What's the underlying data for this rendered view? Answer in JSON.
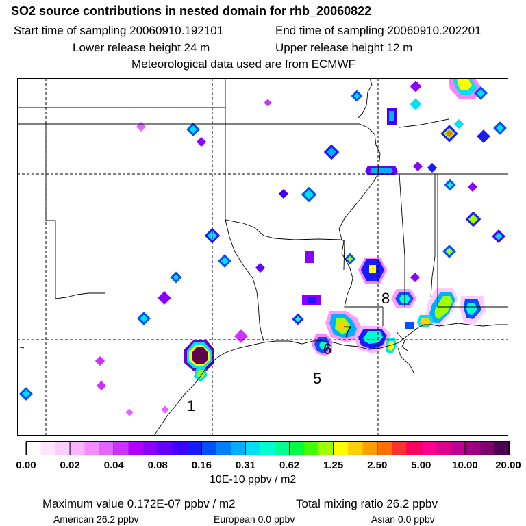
{
  "header": {
    "title": "SO2 source contributions in nested domain for rhb_20060822",
    "start": "Start time of sampling 20060910.192101",
    "end": "End time of sampling 20060910.202201",
    "lower": "Lower release height   24 m",
    "upper": "Upper release height   12 m",
    "met": "Meteorological data used are from ECMWF"
  },
  "map": {
    "labels": [
      "1",
      "5",
      "6",
      "7",
      "8"
    ]
  },
  "legend": {
    "colors": [
      "#ffffff",
      "#ffe6ff",
      "#ffccff",
      "#ffb3ff",
      "#f28cff",
      "#e066ff",
      "#cc33ff",
      "#b300ff",
      "#8c00ff",
      "#6600ff",
      "#4000ff",
      "#1a1aff",
      "#0050ff",
      "#0080ff",
      "#00b0ff",
      "#00e0f0",
      "#00ffd0",
      "#00ff90",
      "#00ff40",
      "#40ff00",
      "#a0ff00",
      "#ffff00",
      "#ffd000",
      "#ffa000",
      "#ff7000",
      "#ff3030",
      "#ff0060",
      "#ff0090",
      "#e0008c",
      "#c00090",
      "#a00080",
      "#800070",
      "#500050"
    ],
    "tick_labels": [
      "0.00",
      "0.02",
      "0.04",
      "0.08",
      "0.16",
      "0.31",
      "0.62",
      "1.25",
      "2.50",
      "5.00",
      "10.00",
      "20.00"
    ],
    "units": "10E-10 ppbv / m2"
  },
  "footer": {
    "max": "Maximum value  0.172E-07 ppbv / m2",
    "total": "Total mixing ratio       26.2 ppbv",
    "american": "American      26.2 ppbv",
    "european": "European       0.0 ppbv",
    "asian": "Asian       0.0 ppbv"
  }
}
